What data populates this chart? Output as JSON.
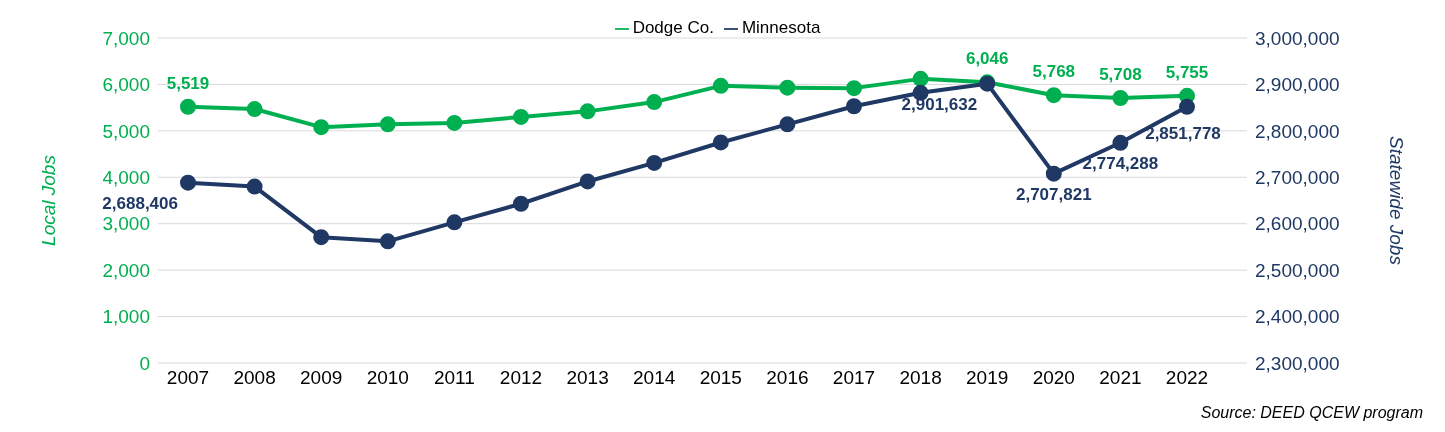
{
  "chart_data": {
    "type": "line",
    "categories": [
      "2007",
      "2008",
      "2009",
      "2010",
      "2011",
      "2012",
      "2013",
      "2014",
      "2015",
      "2016",
      "2017",
      "2018",
      "2019",
      "2020",
      "2021",
      "2022"
    ],
    "series": [
      {
        "name": "Dodge Co.",
        "color": "#00b050",
        "values": [
          5519,
          5470,
          5080,
          5140,
          5170,
          5300,
          5420,
          5620,
          5970,
          5930,
          5920,
          6120,
          6046,
          5768,
          5708,
          5755
        ],
        "value_labels": [
          "5,519",
          null,
          null,
          null,
          null,
          null,
          null,
          null,
          null,
          null,
          null,
          null,
          "6,046",
          "5,768",
          "5,708",
          "5,755"
        ]
      },
      {
        "name": "Minnesota",
        "color": "#1f3864",
        "axis": "y2",
        "values": [
          2688406,
          2680000,
          2571000,
          2562000,
          2603000,
          2643000,
          2691000,
          2731000,
          2775000,
          2814000,
          2853000,
          2882000,
          2901632,
          2707821,
          2774288,
          2851778
        ],
        "value_labels": [
          "2,688,406",
          null,
          null,
          null,
          null,
          null,
          null,
          null,
          null,
          null,
          null,
          null,
          "2,901,632",
          "2,707,821",
          "2,774,288",
          "2,851,778"
        ]
      }
    ],
    "ylabel": "Local Jobs",
    "y2label": "Statewide Jobs",
    "ylim": [
      0,
      7000
    ],
    "yticks": [
      {
        "value": 0,
        "label": "0"
      },
      {
        "value": 1000,
        "label": "1,000"
      },
      {
        "value": 2000,
        "label": "2,000"
      },
      {
        "value": 3000,
        "label": "3,000"
      },
      {
        "value": 4000,
        "label": "4,000"
      },
      {
        "value": 5000,
        "label": "5,000"
      },
      {
        "value": 6000,
        "label": "6,000"
      },
      {
        "value": 7000,
        "label": "7,000"
      }
    ],
    "y2lim": [
      2300000,
      3000000
    ],
    "y2ticks": [
      {
        "value": 2300000,
        "label": "2,300,000"
      },
      {
        "value": 2400000,
        "label": "2,400,000"
      },
      {
        "value": 2500000,
        "label": "2,500,000"
      },
      {
        "value": 2600000,
        "label": "2,600,000"
      },
      {
        "value": 2700000,
        "label": "2,700,000"
      },
      {
        "value": 2800000,
        "label": "2,800,000"
      },
      {
        "value": 2900000,
        "label": "2,900,000"
      },
      {
        "value": 3000000,
        "label": "3,000,000"
      }
    ],
    "grid": "y",
    "legend": "top",
    "marker": "circle",
    "line_style": "solid",
    "annotations": [
      "Source: DEED QCEW program"
    ]
  }
}
